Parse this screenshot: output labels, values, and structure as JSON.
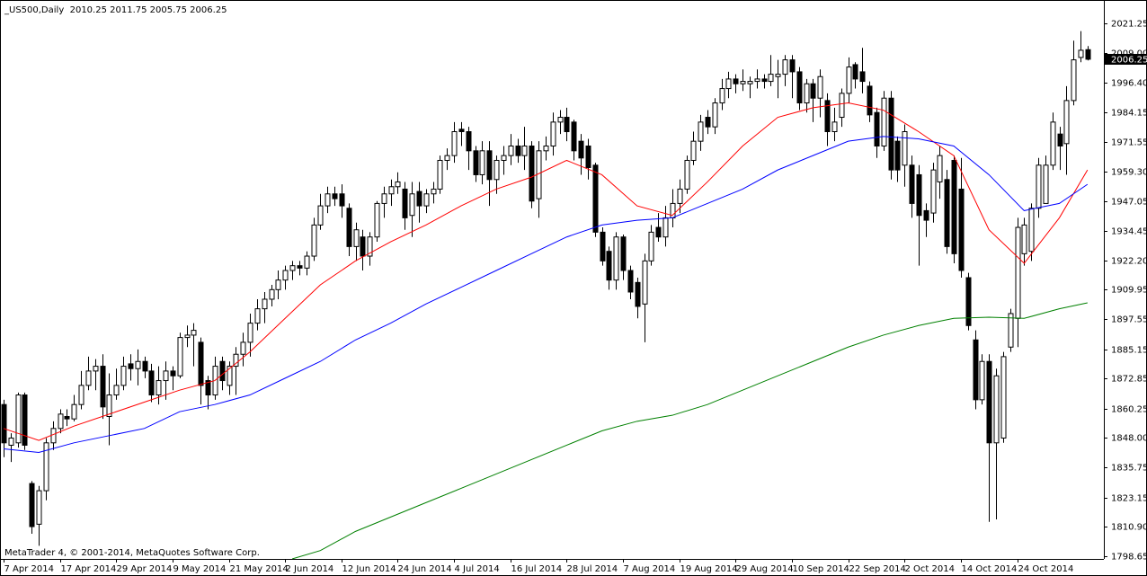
{
  "chart_data": {
    "type": "candlestick",
    "title": "_US500,Daily  2010.25 2011.75 2005.75 2006.25",
    "footer": "MetaTrader 4, © 2001-2014, MetaQuotes Software Corp.",
    "categories": [
      "7 Apr 2014",
      null,
      null,
      null,
      null,
      null,
      null,
      null,
      "17 Apr 2014",
      null,
      null,
      null,
      null,
      null,
      null,
      null,
      "29 Apr 2014",
      null,
      null,
      null,
      null,
      null,
      null,
      null,
      "9 May 2014",
      null,
      null,
      null,
      null,
      null,
      null,
      null,
      "21 May 2014",
      null,
      null,
      null,
      null,
      null,
      null,
      null,
      "2 Jun 2014",
      null,
      null,
      null,
      null,
      null,
      null,
      null,
      "12 Jun 2014",
      null,
      null,
      null,
      null,
      null,
      null,
      null,
      "24 Jun 2014",
      null,
      null,
      null,
      null,
      null,
      null,
      null,
      "4 Jul 2014",
      null,
      null,
      null,
      null,
      null,
      null,
      null,
      "16 Jul 2014",
      null,
      null,
      null,
      null,
      null,
      null,
      null,
      "28 Jul 2014",
      null,
      null,
      null,
      null,
      null,
      null,
      null,
      "7 Aug 2014",
      null,
      null,
      null,
      null,
      null,
      null,
      null,
      "19 Aug 2014",
      null,
      null,
      null,
      null,
      null,
      null,
      null,
      "29 Aug 2014",
      null,
      null,
      null,
      null,
      null,
      null,
      null,
      "10 Sep 2014",
      null,
      null,
      null,
      null,
      null,
      null,
      null,
      "22 Sep 2014",
      null,
      null,
      null,
      null,
      null,
      null,
      null,
      "2 Oct 2014",
      null,
      null,
      null,
      null,
      null,
      null,
      null,
      "14 Oct 2014",
      null,
      null,
      null,
      null,
      null,
      null,
      null,
      "24 Oct 2014",
      null,
      null,
      null,
      null,
      null,
      null,
      null,
      null,
      null,
      null
    ],
    "open": [
      1862,
      1845,
      1846,
      1866,
      1829,
      1812,
      1826,
      1846,
      1852,
      1857,
      1856,
      1862,
      1870,
      1876,
      1878,
      1857,
      1866,
      1870,
      1879,
      1877,
      1880,
      1876,
      1866,
      1872,
      1876,
      1874,
      1890,
      1891,
      1888,
      1872,
      1866,
      1880,
      1870,
      1878,
      1883,
      1888,
      1896,
      1902,
      1906,
      1910,
      1914,
      1918,
      1920,
      1919,
      1924,
      1937,
      1945,
      1950,
      1950,
      1944,
      1928,
      1932,
      1924,
      1932,
      1946,
      1950,
      1953,
      1952,
      1941,
      1951,
      1945,
      1950,
      1952,
      1964,
      1966,
      1977,
      1976,
      1968,
      1958,
      1968,
      1956,
      1964,
      1966,
      1970,
      1966,
      1970,
      1948,
      1968,
      1970,
      1980,
      1982,
      1980,
      1972,
      1970,
      1962,
      1934,
      1926,
      1914,
      1932,
      1918,
      1913,
      1904,
      1922,
      1936,
      1932,
      1940,
      1946,
      1952,
      1964,
      1972,
      1982,
      1978,
      1988,
      1994,
      1998,
      1996,
      1996,
      1997,
      1998,
      1997,
      1999,
      2000,
      2006,
      2001,
      1988,
      1996,
      1990,
      1989,
      1976,
      1982,
      1992,
      2004,
      2001,
      1995,
      1984,
      1970,
      1990,
      1972,
      1962,
      1962,
      1958,
      1943,
      1942,
      1955,
      1956,
      1964,
      1952,
      1915,
      1889,
      1864,
      1880,
      1846,
      1848,
      1886,
      1898,
      1925,
      1926,
      1944,
      1946,
      1962,
      1975,
      1971,
      1989,
      2007,
      2010.25
    ],
    "high": [
      1864,
      1850,
      1867,
      1867,
      1830,
      1828,
      1848,
      1855,
      1860,
      1860,
      1866,
      1876,
      1882,
      1881,
      1883,
      1875,
      1877,
      1882,
      1883,
      1885,
      1882,
      1879,
      1878,
      1880,
      1878,
      1892,
      1895,
      1896,
      1890,
      1874,
      1882,
      1882,
      1880,
      1886,
      1892,
      1900,
      1906,
      1909,
      1912,
      1918,
      1920,
      1922,
      1922,
      1926,
      1940,
      1950,
      1953,
      1953,
      1954,
      1946,
      1938,
      1935,
      1934,
      1947,
      1953,
      1956,
      1959,
      1955,
      1955,
      1955,
      1952,
      1955,
      1966,
      1969,
      1980,
      1980,
      1978,
      1970,
      1972,
      1972,
      1966,
      1970,
      1975,
      1973,
      1978,
      1972,
      1972,
      1974,
      1984,
      1985,
      1986,
      1981,
      1975,
      1973,
      1963,
      1936,
      1928,
      1934,
      1933,
      1920,
      1915,
      1925,
      1937,
      1942,
      1945,
      1952,
      1956,
      1966,
      1976,
      1983,
      1985,
      1990,
      1998,
      2001,
      2000,
      2002,
      1999,
      2002,
      2000,
      2008,
      2006,
      2008,
      2008,
      2003,
      1998,
      1998,
      2002,
      1992,
      1986,
      1994,
      2007,
      2005,
      2011,
      1997,
      1986,
      1993,
      1993,
      1974,
      1979,
      1966,
      1962,
      1946,
      1963,
      1970,
      1960,
      1966,
      1965,
      1917,
      1893,
      1883,
      1883,
      1877,
      1884,
      1902,
      1940,
      1940,
      1946,
      1965,
      1966,
      1984,
      1978,
      1995,
      2014,
      2018,
      2011.75
    ],
    "low": [
      1840,
      1838,
      1844,
      1843,
      1808,
      1803,
      1822,
      1843,
      1850,
      1853,
      1855,
      1860,
      1868,
      1868,
      1856,
      1845,
      1864,
      1868,
      1872,
      1870,
      1873,
      1863,
      1862,
      1864,
      1868,
      1873,
      1886,
      1878,
      1862,
      1860,
      1864,
      1868,
      1866,
      1866,
      1878,
      1882,
      1893,
      1896,
      1903,
      1906,
      1910,
      1914,
      1916,
      1916,
      1922,
      1935,
      1942,
      1945,
      1940,
      1924,
      1922,
      1918,
      1920,
      1930,
      1940,
      1945,
      1950,
      1935,
      1932,
      1938,
      1942,
      1946,
      1950,
      1960,
      1963,
      1970,
      1960,
      1955,
      1954,
      1945,
      1950,
      1958,
      1962,
      1963,
      1960,
      1944,
      1940,
      1964,
      1966,
      1975,
      1972,
      1964,
      1958,
      1956,
      1932,
      1920,
      1910,
      1910,
      1914,
      1906,
      1898,
      1888,
      1920,
      1930,
      1928,
      1936,
      1942,
      1950,
      1962,
      1968,
      1975,
      1975,
      1985,
      1990,
      1992,
      1993,
      1990,
      1994,
      1994,
      1995,
      1990,
      1995,
      1990,
      1985,
      1984,
      1980,
      1982,
      1970,
      1972,
      1978,
      1988,
      1994,
      1992,
      1980,
      1965,
      1968,
      1956,
      1955,
      1953,
      1940,
      1920,
      1932,
      1938,
      1948,
      1925,
      1921,
      1915,
      1893,
      1860,
      1862,
      1813,
      1814,
      1846,
      1884,
      1886,
      1920,
      1922,
      1940,
      1946,
      1960,
      1960,
      1958,
      1987,
      2005,
      2005.75
    ],
    "close": [
      1846,
      1848,
      1866,
      1845,
      1811,
      1826,
      1846,
      1852,
      1858,
      1856,
      1862,
      1870,
      1876,
      1878,
      1861,
      1866,
      1870,
      1878,
      1877,
      1880,
      1876,
      1866,
      1872,
      1876,
      1874,
      1890,
      1891,
      1893,
      1870,
      1866,
      1878,
      1872,
      1878,
      1883,
      1888,
      1896,
      1902,
      1906,
      1910,
      1914,
      1918,
      1920,
      1919,
      1924,
      1937,
      1945,
      1950,
      1948,
      1945,
      1928,
      1935,
      1924,
      1932,
      1946,
      1950,
      1953,
      1955,
      1940,
      1950,
      1945,
      1950,
      1952,
      1964,
      1966,
      1976,
      1976,
      1968,
      1958,
      1968,
      1956,
      1964,
      1966,
      1970,
      1966,
      1970,
      1947,
      1968,
      1970,
      1980,
      1982,
      1976,
      1968,
      1965,
      1961,
      1934,
      1922,
      1914,
      1932,
      1918,
      1909,
      1903,
      1922,
      1934,
      1932,
      1940,
      1946,
      1952,
      1964,
      1972,
      1980,
      1978,
      1988,
      1994,
      1998,
      1996,
      1997,
      1997,
      1998,
      1997,
      2000,
      2000,
      2006,
      2001,
      1988,
      1996,
      1990,
      1999,
      1976,
      1980,
      1992,
      2003,
      1998,
      1997,
      1983,
      1970,
      1990,
      1960,
      1960,
      1976,
      1946,
      1941,
      1939,
      1960,
      1966,
      1928,
      1925,
      1918,
      1895,
      1864,
      1880,
      1846,
      1874,
      1882,
      1900,
      1936,
      1937,
      1944,
      1962,
      1962,
      1980,
      1970,
      1989,
      2006,
      2010,
      2006.25
    ],
    "up_color": "#ffffff",
    "down_color": "#000000",
    "lines": [
      {
        "color": "#ff0000",
        "x": [
          0,
          5,
          10,
          15,
          20,
          25,
          30,
          35,
          40,
          45,
          50,
          55,
          60,
          65,
          70,
          75,
          80,
          85,
          90,
          95,
          100,
          105,
          110,
          115,
          120,
          125,
          130,
          135,
          140,
          145,
          150,
          154
        ],
        "values": [
          1852,
          1847,
          1853,
          1858,
          1863,
          1868,
          1872,
          1884,
          1898,
          1912,
          1922,
          1930,
          1937,
          1945,
          1952,
          1957,
          1964,
          1958,
          1945,
          1941,
          1955,
          1970,
          1982,
          1986,
          1988,
          1985,
          1976,
          1966,
          1935,
          1921,
          1940,
          1960
        ]
      },
      {
        "color": "#0000ff",
        "x": [
          0,
          5,
          10,
          15,
          20,
          25,
          30,
          35,
          40,
          45,
          50,
          55,
          60,
          65,
          70,
          75,
          80,
          85,
          90,
          95,
          100,
          105,
          110,
          115,
          120,
          125,
          130,
          135,
          140,
          145,
          150,
          154
        ],
        "values": [
          1843.5,
          1842,
          1846,
          1849,
          1852,
          1859,
          1862,
          1866,
          1873,
          1880,
          1889,
          1896,
          1904,
          1911,
          1918,
          1925,
          1932,
          1937,
          1939,
          1940,
          1946,
          1952,
          1960,
          1966,
          1972,
          1974,
          1973,
          1970,
          1958,
          1943,
          1946,
          1954
        ]
      },
      {
        "color": "#008000",
        "x": [
          41,
          45,
          50,
          55,
          60,
          65,
          70,
          75,
          80,
          85,
          90,
          95,
          100,
          105,
          110,
          115,
          120,
          125,
          130,
          135,
          140,
          145,
          150,
          154
        ],
        "values": [
          1797.5,
          1801,
          1809,
          1815,
          1821,
          1827,
          1833,
          1839,
          1845,
          1851,
          1855,
          1857.5,
          1862,
          1868,
          1874,
          1880,
          1886,
          1891,
          1895,
          1898,
          1898.5,
          1898,
          1902,
          1904.5
        ]
      }
    ],
    "ylim": [
      1797.5,
      2031
    ],
    "yticks": [
      2021.25,
      {
        "value": 2009,
        "label": "2009.00"
      },
      {
        "value": 1996.4,
        "label": "1996.40"
      },
      1984.15,
      1971.55,
      {
        "value": 1959.3,
        "label": "1959.30"
      },
      1947.05,
      1934.45,
      {
        "value": 1922.2,
        "label": "1922.20"
      },
      1909.95,
      1897.55,
      1885.15,
      1872.85,
      1860.25,
      {
        "value": 1848,
        "label": "1848.00"
      },
      1835.75,
      1823.15,
      {
        "value": 1810.9,
        "label": "1810.90"
      },
      1798.65
    ]
  }
}
